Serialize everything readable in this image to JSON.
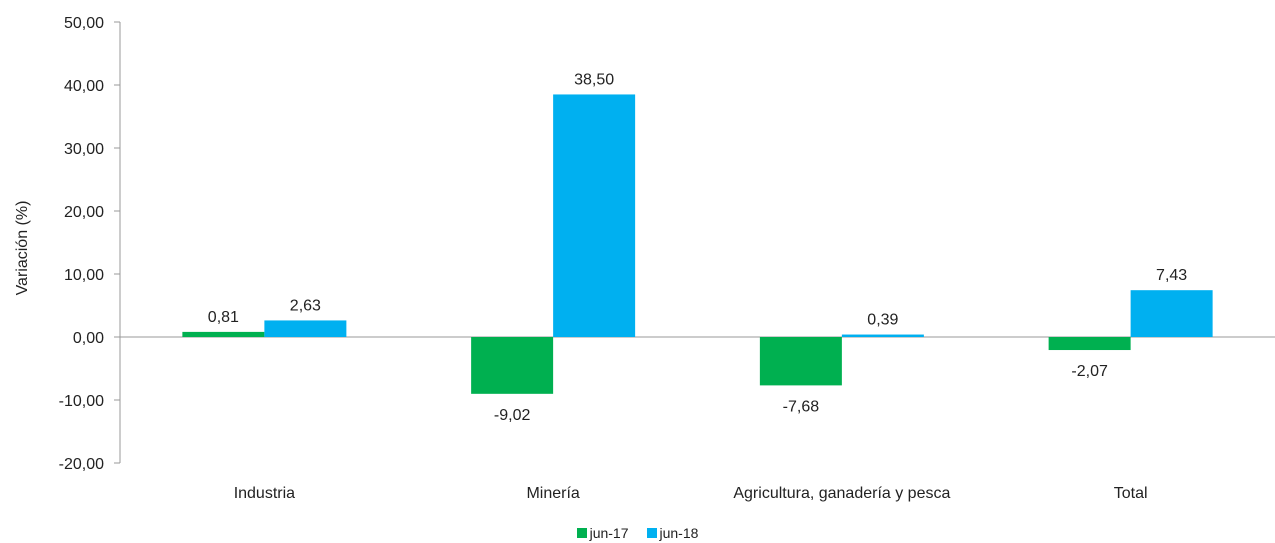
{
  "chart_data": {
    "type": "bar",
    "categories": [
      "Industria",
      "Minería",
      "Agricultura, ganadería y pesca",
      "Total"
    ],
    "series": [
      {
        "name": "jun-17",
        "color": "#00B050",
        "values": [
          0.81,
          -9.02,
          -7.68,
          -2.07
        ],
        "labels": [
          "0,81",
          "-9,02",
          "-7,68",
          "-2,07"
        ]
      },
      {
        "name": "jun-18",
        "color": "#00B0F0",
        "values": [
          2.63,
          38.5,
          0.39,
          7.43
        ],
        "labels": [
          "2,63",
          "38,50",
          "0,39",
          "7,43"
        ]
      }
    ],
    "title": "",
    "xlabel": "",
    "ylabel": "Variación (%)",
    "ylim": [
      -20,
      50
    ],
    "yticks": [
      50,
      40,
      30,
      20,
      10,
      0,
      -10,
      -20
    ],
    "ytick_labels": [
      "50,00",
      "40,00",
      "30,00",
      "20,00",
      "10,00",
      "0,00",
      "-10,00",
      "-20,00"
    ],
    "grid": false,
    "legend_position": "bottom"
  }
}
